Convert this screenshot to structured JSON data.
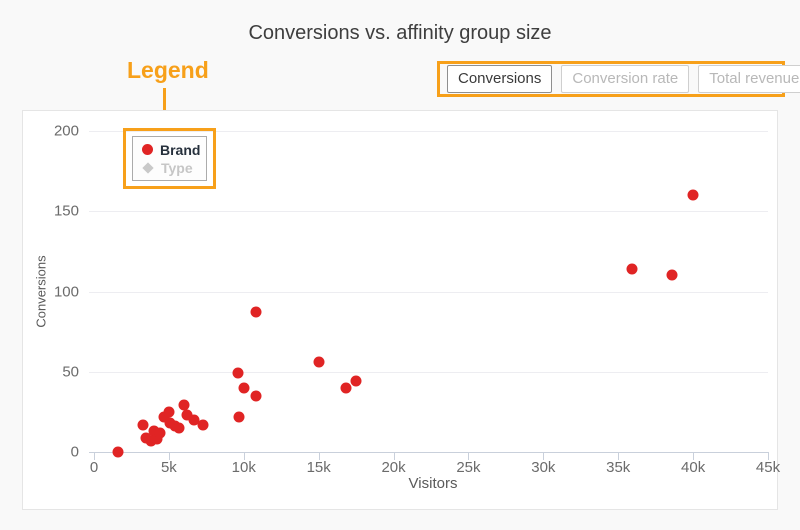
{
  "page": {
    "title": "Conversions vs. affinity group size"
  },
  "annotation": {
    "label": "Legend",
    "highlight_color": "#f7a01a"
  },
  "metric_buttons": [
    {
      "label": "Conversions",
      "active": true
    },
    {
      "label": "Conversion rate",
      "active": false
    },
    {
      "label": "Total revenue",
      "active": false
    }
  ],
  "legend": {
    "items": [
      {
        "label": "Brand",
        "marker": "circle",
        "color": "#e02424",
        "text_color": "#26303c",
        "active": true
      },
      {
        "label": "Type",
        "marker": "diamond",
        "color": "#c9c9c9",
        "text_color": "#c6c6c6",
        "active": false
      }
    ]
  },
  "chart_data": {
    "type": "scatter",
    "title": "Conversions vs. affinity group size",
    "xlabel": "Visitors",
    "ylabel": "Conversions",
    "xlim": [
      0,
      45000
    ],
    "ylim": [
      0,
      200
    ],
    "x_ticks": [
      0,
      5000,
      10000,
      15000,
      20000,
      25000,
      30000,
      35000,
      40000,
      45000
    ],
    "x_tick_labels": [
      "0",
      "5k",
      "10k",
      "15k",
      "20k",
      "25k",
      "30k",
      "35k",
      "40k",
      "45k"
    ],
    "y_ticks": [
      0,
      50,
      100,
      150,
      200
    ],
    "grid": true,
    "legend_position": "top-left",
    "series": [
      {
        "name": "Brand",
        "color": "#e02424",
        "visible": true,
        "points": [
          [
            1600,
            0
          ],
          [
            3300,
            17
          ],
          [
            3500,
            9
          ],
          [
            3800,
            7
          ],
          [
            4000,
            13
          ],
          [
            4200,
            8
          ],
          [
            4400,
            12
          ],
          [
            4700,
            22
          ],
          [
            5000,
            25
          ],
          [
            5100,
            18
          ],
          [
            5400,
            16
          ],
          [
            5700,
            15
          ],
          [
            6000,
            29
          ],
          [
            6200,
            23
          ],
          [
            6700,
            20
          ],
          [
            7300,
            17
          ],
          [
            9600,
            49
          ],
          [
            9700,
            22
          ],
          [
            10000,
            40
          ],
          [
            10800,
            35
          ],
          [
            10800,
            87
          ],
          [
            15000,
            56
          ],
          [
            16800,
            40
          ],
          [
            17500,
            44
          ],
          [
            35900,
            114
          ],
          [
            38600,
            110
          ],
          [
            40000,
            160
          ]
        ]
      },
      {
        "name": "Type",
        "color": "#c9c9c9",
        "visible": false,
        "points": []
      }
    ]
  },
  "colors": {
    "accent_orange": "#f7a01a",
    "point_red": "#e02424",
    "panel_background": "#ffffff",
    "page_background": "#f9f9f9",
    "axis_line": "#c9d0db",
    "gridline": "#ededf1"
  }
}
